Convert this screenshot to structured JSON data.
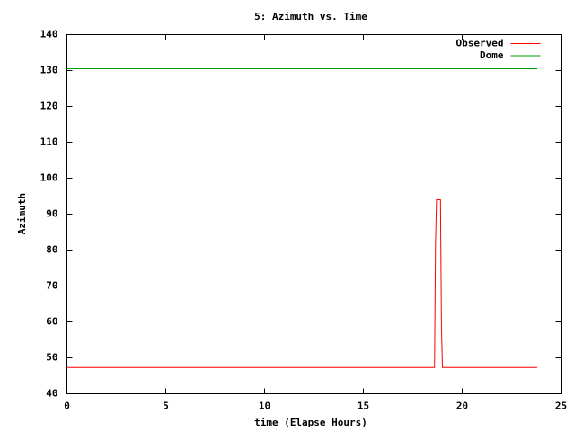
{
  "chart_data": {
    "type": "line",
    "title": "5: Azimuth vs. Time",
    "x_label": "time (Elapse Hours)",
    "y_label": "Azimuth",
    "xlim": [
      0,
      25
    ],
    "xticks": [
      0,
      5,
      10,
      15,
      20,
      25
    ],
    "ylim": [
      40,
      140
    ],
    "yticks": [
      40,
      50,
      60,
      70,
      80,
      90,
      100,
      110,
      120,
      130,
      140
    ],
    "grid": false,
    "legend_position": "top-right",
    "series": [
      {
        "name": "Observed",
        "color": "#ff0000",
        "x": [
          0,
          18.6,
          18.65,
          18.7,
          18.9,
          18.95,
          19.0,
          23.8
        ],
        "values": [
          47.3,
          47.3,
          82,
          94,
          94,
          59,
          47.3,
          47.3
        ]
      },
      {
        "name": "Dome",
        "color": "#00a000",
        "x": [
          0,
          23.8
        ],
        "values": [
          130.5,
          130.5
        ]
      }
    ]
  }
}
